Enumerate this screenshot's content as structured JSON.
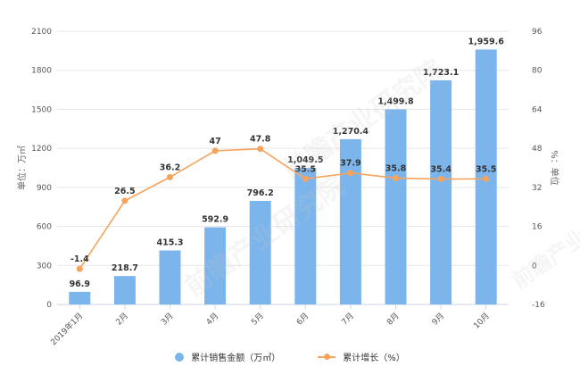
{
  "chart_data": {
    "type": "bar+line",
    "title": "",
    "categories": [
      "2019年1月",
      "2月",
      "3月",
      "4月",
      "5月",
      "6月",
      "7月",
      "8月",
      "9月",
      "10月"
    ],
    "series": [
      {
        "name": "累计销售金额（万㎡）",
        "type": "bar",
        "axis": "left",
        "color": "#7cb5ec",
        "values": [
          96.9,
          218.7,
          415.3,
          592.9,
          796.2,
          1049.5,
          1270.4,
          1499.8,
          1723.1,
          1959.6
        ],
        "labels": [
          "96.9",
          "218.7",
          "415.3",
          "592.9",
          "796.2",
          "1,049.5",
          "1,270.4",
          "1,499.8",
          "1,723.1",
          "1,959.6"
        ]
      },
      {
        "name": "累计增长（%）",
        "type": "line",
        "axis": "right",
        "color": "#f7a35c",
        "values": [
          -1.4,
          26.5,
          36.2,
          47,
          47.8,
          35.5,
          37.9,
          35.8,
          35.4,
          35.5
        ],
        "labels": [
          "-1.4",
          "26.5",
          "36.2",
          "47",
          "47.8",
          "35.5",
          "37.9",
          "35.8",
          "35.4",
          "35.5"
        ]
      }
    ],
    "ylabel": "单位：万㎡",
    "ylabel_right": "%：单位",
    "ylim": [
      0,
      2100
    ],
    "ylim_right": [
      -16,
      96
    ],
    "yticks": [
      0,
      300,
      600,
      900,
      1200,
      1500,
      1800,
      2100
    ],
    "yticks_right": [
      -16,
      0,
      16,
      32,
      48,
      64,
      80,
      96
    ],
    "grid": true,
    "legend_position": "bottom"
  },
  "legend": {
    "items": [
      {
        "label": "累计销售金额（万㎡）",
        "color": "#7cb5ec",
        "marker": "circle"
      },
      {
        "label": "累计增长（%）",
        "color": "#f7a35c",
        "marker": "line"
      }
    ]
  },
  "watermark": {
    "text": "前瞻产业研究院"
  }
}
